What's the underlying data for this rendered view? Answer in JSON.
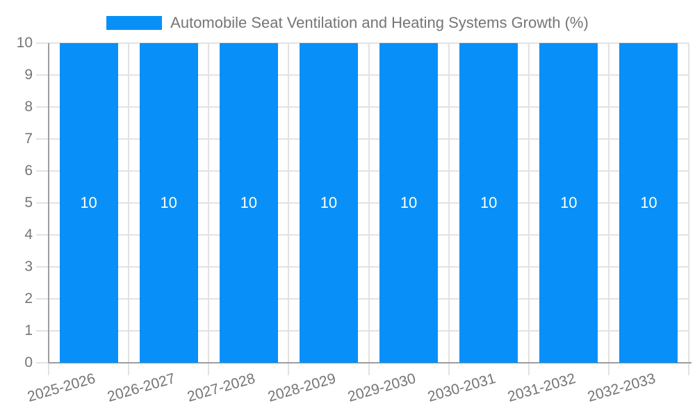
{
  "chart_data": {
    "type": "bar",
    "title": "Automobile Seat Ventilation and Heating Systems Growth (%)",
    "categories": [
      "2025-2026",
      "2026-2027",
      "2027-2028",
      "2028-2029",
      "2029-2030",
      "2030-2031",
      "2031-2032",
      "2032-2033"
    ],
    "series": [
      {
        "name": "Automobile Seat Ventilation and Heating Systems Growth (%)",
        "values": [
          10,
          10,
          10,
          10,
          10,
          10,
          10,
          10
        ]
      }
    ],
    "bar_value_labels": [
      "10",
      "10",
      "10",
      "10",
      "10",
      "10",
      "10",
      "10"
    ],
    "xlabel": "",
    "ylabel": "",
    "ylim": [
      0,
      10
    ],
    "yticks": [
      0,
      1,
      2,
      3,
      4,
      5,
      6,
      7,
      8,
      9,
      10
    ],
    "grid": "on",
    "legend_position": "top-center",
    "colors": {
      "bar": "#0890F8",
      "grid": "#E2E2E2",
      "axis": "#9E9E9E",
      "tick_text": "#757575",
      "legend_text": "#757575",
      "bar_label_text": "#FFFFFF",
      "background": "#FFFFFF"
    }
  }
}
